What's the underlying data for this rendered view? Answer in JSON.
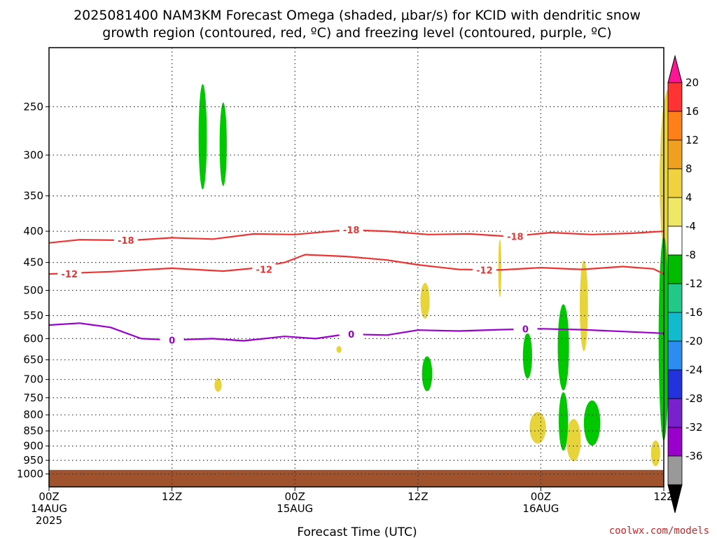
{
  "title_line1": "2025081400 NAM3KM Forecast Omega (shaded, μbar/s) for KCID with dendritic snow",
  "title_line2": "growth region (contoured, red, ºC) and freezing level (contoured, purple, ºC)",
  "xlabel": "Forecast Time (UTC)",
  "credit": "coolwx.com/models",
  "chart_data": {
    "type": "contour",
    "x_range_hours": [
      0,
      60
    ],
    "y_axis": {
      "scale": "log-pressure",
      "range_hpa": [
        200,
        1050
      ],
      "inverted": true,
      "ticks": [
        250,
        300,
        350,
        400,
        450,
        500,
        550,
        600,
        650,
        700,
        750,
        800,
        850,
        900,
        950,
        1000
      ]
    },
    "x_ticks": [
      {
        "hour": 0,
        "l1": "00Z",
        "l2": "14AUG",
        "l3": "2025"
      },
      {
        "hour": 12,
        "l1": "12Z",
        "l2": "",
        "l3": ""
      },
      {
        "hour": 24,
        "l1": "00Z",
        "l2": "15AUG",
        "l3": ""
      },
      {
        "hour": 36,
        "l1": "12Z",
        "l2": "",
        "l3": ""
      },
      {
        "hour": 48,
        "l1": "00Z",
        "l2": "16AUG",
        "l3": ""
      },
      {
        "hour": 60,
        "l1": "12Z",
        "l2": "",
        "l3": ""
      }
    ],
    "grid": "dotted",
    "ground": {
      "color": "#a0522d",
      "top_hpa": 985
    },
    "colorbar": {
      "labels": [
        "20",
        "16",
        "12",
        "8",
        "4",
        "-4",
        "-8",
        "-12",
        "-16",
        "-20",
        "-24",
        "-28",
        "-32",
        "-36"
      ],
      "colors": [
        "#ff1493",
        "#ff3333",
        "#ff7f1a",
        "#f0a020",
        "#f0d240",
        "#eee866",
        "#ffffff",
        "#00bb00",
        "#22c888",
        "#11bbcc",
        "#2c8cf0",
        "#2233dd",
        "#7722cc",
        "#9900cc",
        "#999999",
        "#000000"
      ]
    },
    "contours": [
      {
        "name": "-18",
        "color": "#ee3333",
        "label": "-18",
        "points": [
          [
            0,
            418
          ],
          [
            3,
            413
          ],
          [
            8,
            414
          ],
          [
            12,
            410
          ],
          [
            16,
            412
          ],
          [
            20,
            404
          ],
          [
            24,
            405
          ],
          [
            29,
            398
          ],
          [
            33,
            400
          ],
          [
            37,
            405
          ],
          [
            41,
            404
          ],
          [
            45,
            408
          ],
          [
            49,
            402
          ],
          [
            53,
            405
          ],
          [
            57,
            403
          ],
          [
            60,
            400
          ]
        ],
        "label_at": [
          [
            7.5,
            414
          ],
          [
            29.5,
            398
          ],
          [
            45.5,
            408
          ]
        ]
      },
      {
        "name": "-12",
        "color": "#ee3333",
        "label": "-12",
        "points": [
          [
            0,
            470
          ],
          [
            6,
            466
          ],
          [
            12,
            460
          ],
          [
            17,
            465
          ],
          [
            20,
            460
          ],
          [
            23,
            450
          ],
          [
            25,
            437
          ],
          [
            29,
            440
          ],
          [
            33,
            446
          ],
          [
            36,
            454
          ],
          [
            40,
            462
          ],
          [
            44,
            463
          ],
          [
            48,
            459
          ],
          [
            52,
            462
          ],
          [
            56,
            457
          ],
          [
            59,
            461
          ],
          [
            60,
            470
          ]
        ],
        "label_at": [
          [
            2,
            470
          ],
          [
            21,
            462
          ],
          [
            42.5,
            463
          ]
        ]
      },
      {
        "name": "0",
        "color": "#9900cc",
        "label": "0",
        "points": [
          [
            0,
            570
          ],
          [
            3,
            566
          ],
          [
            6,
            575
          ],
          [
            9,
            600
          ],
          [
            12,
            603
          ],
          [
            16,
            600
          ],
          [
            19,
            605
          ],
          [
            23,
            595
          ],
          [
            26,
            600
          ],
          [
            29,
            590
          ],
          [
            33,
            592
          ],
          [
            36,
            581
          ],
          [
            40,
            583
          ],
          [
            44,
            580
          ],
          [
            48,
            578
          ],
          [
            52,
            580
          ],
          [
            56,
            584
          ],
          [
            60,
            588
          ]
        ],
        "label_at": [
          [
            12,
            603
          ],
          [
            29.5,
            590
          ],
          [
            46.5,
            578
          ]
        ]
      }
    ],
    "shaded_regions": [
      {
        "category": "-8 to -4",
        "color": "#00c800",
        "center": [
          15,
          280
        ],
        "half": [
          0.4,
          55
        ]
      },
      {
        "category": "-8 to -4",
        "color": "#00c800",
        "center": [
          17,
          288
        ],
        "half": [
          0.35,
          45
        ]
      },
      {
        "category": "4 to 8",
        "color": "#e6d43a",
        "center": [
          60.5,
          330
        ],
        "half": [
          0.9,
          110
        ]
      },
      {
        "category": "4 to 8",
        "color": "#e6d43a",
        "center": [
          16.5,
          715
        ],
        "half": [
          0.35,
          18
        ]
      },
      {
        "category": "4 to 8",
        "color": "#e6d43a",
        "center": [
          36.7,
          520
        ],
        "half": [
          0.45,
          35
        ]
      },
      {
        "category": "4 to 8",
        "color": "#e6d43a",
        "center": [
          28.3,
          625
        ],
        "half": [
          0.25,
          8
        ]
      },
      {
        "category": "4 to 8",
        "color": "#e6d43a",
        "center": [
          44,
          460
        ],
        "half": [
          0.15,
          50
        ]
      },
      {
        "category": "4 to 8",
        "color": "#e6d43a",
        "center": [
          52.2,
          530
        ],
        "half": [
          0.4,
          90
        ]
      },
      {
        "category": "4 to 8",
        "color": "#e6d43a",
        "center": [
          47.7,
          840
        ],
        "half": [
          0.8,
          50
        ]
      },
      {
        "category": "4 to 8",
        "color": "#e6d43a",
        "center": [
          51.2,
          880
        ],
        "half": [
          0.7,
          70
        ]
      },
      {
        "category": "4 to 8",
        "color": "#e6d43a",
        "center": [
          59.2,
          925
        ],
        "half": [
          0.45,
          45
        ]
      },
      {
        "category": "-8 to -4",
        "color": "#00c800",
        "center": [
          36.9,
          685
        ],
        "half": [
          0.5,
          45
        ]
      },
      {
        "category": "-8 to -4",
        "color": "#00c800",
        "center": [
          46.7,
          640
        ],
        "half": [
          0.45,
          55
        ]
      },
      {
        "category": "-8 to -4",
        "color": "#00c800",
        "center": [
          50.2,
          620
        ],
        "half": [
          0.55,
          100
        ]
      },
      {
        "category": "-8 to -4",
        "color": "#00c800",
        "center": [
          50.2,
          820
        ],
        "half": [
          0.45,
          90
        ]
      },
      {
        "category": "-8 to -4",
        "color": "#00c800",
        "center": [
          53,
          825
        ],
        "half": [
          0.8,
          70
        ]
      },
      {
        "category": "-8 to -4",
        "color": "#00c800",
        "center": [
          60,
          600
        ],
        "half": [
          0.5,
          220
        ]
      }
    ]
  }
}
